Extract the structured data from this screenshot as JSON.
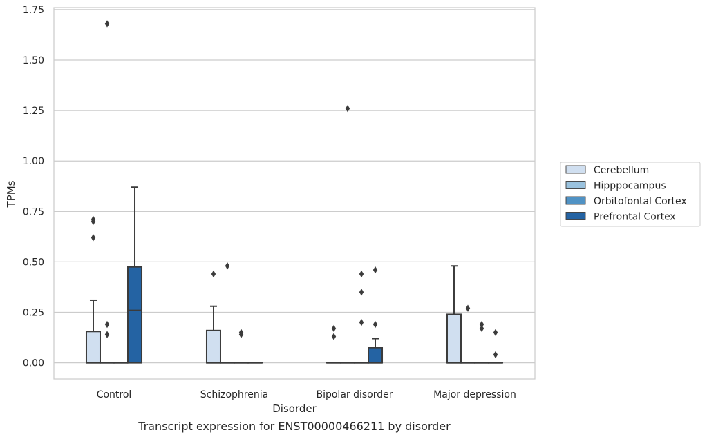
{
  "chart_data": {
    "type": "box",
    "caption": "Transcript expression for ENST00000466211 by disorder",
    "xlabel": "Disorder",
    "ylabel": "TPMs",
    "categories": [
      "Control",
      "Schizophrenia",
      "Bipolar disorder",
      "Major depression"
    ],
    "ylim": [
      -0.08,
      1.76
    ],
    "yticks": [
      0.0,
      0.25,
      0.5,
      0.75,
      1.0,
      1.25,
      1.5,
      1.75
    ],
    "ytick_labels": [
      "0.00",
      "0.25",
      "0.50",
      "0.75",
      "1.00",
      "1.25",
      "1.50",
      "1.75"
    ],
    "grid": "horizontal",
    "legend_position": "right",
    "series": [
      {
        "name": "Cerebellum",
        "color": "#d0dff0",
        "boxes": [
          {
            "q1": 0.0,
            "median": 0.0,
            "q3": 0.155,
            "whisker_low": 0.0,
            "whisker_high": 0.31,
            "outliers": [
              0.71,
              0.7,
              0.62
            ]
          },
          {
            "q1": 0.0,
            "median": 0.0,
            "q3": 0.16,
            "whisker_low": 0.0,
            "whisker_high": 0.28,
            "outliers": [
              0.44
            ]
          },
          {
            "q1": 0.0,
            "median": 0.0,
            "q3": 0.0,
            "whisker_low": 0.0,
            "whisker_high": 0.0,
            "outliers": [
              0.17,
              0.13
            ]
          },
          {
            "q1": 0.0,
            "median": 0.0,
            "q3": 0.24,
            "whisker_low": 0.0,
            "whisker_high": 0.48,
            "outliers": []
          }
        ]
      },
      {
        "name": "Hipppocampus",
        "color": "#9ac2de",
        "boxes": [
          {
            "q1": 0.0,
            "median": 0.0,
            "q3": 0.0,
            "whisker_low": 0.0,
            "whisker_high": 0.0,
            "outliers": [
              1.68,
              0.19,
              0.14
            ]
          },
          {
            "q1": 0.0,
            "median": 0.0,
            "q3": 0.0,
            "whisker_low": 0.0,
            "whisker_high": 0.0,
            "outliers": [
              0.48
            ]
          },
          {
            "q1": 0.0,
            "median": 0.0,
            "q3": 0.0,
            "whisker_low": 0.0,
            "whisker_high": 0.0,
            "outliers": [
              1.26
            ]
          },
          {
            "q1": 0.0,
            "median": 0.0,
            "q3": 0.0,
            "whisker_low": 0.0,
            "whisker_high": 0.0,
            "outliers": [
              0.27
            ]
          }
        ]
      },
      {
        "name": "Orbitofontal Cortex",
        "color": "#5092c4",
        "boxes": [
          {
            "q1": 0.0,
            "median": 0.0,
            "q3": 0.0,
            "whisker_low": 0.0,
            "whisker_high": 0.0,
            "outliers": []
          },
          {
            "q1": 0.0,
            "median": 0.0,
            "q3": 0.0,
            "whisker_low": 0.0,
            "whisker_high": 0.0,
            "outliers": [
              0.15,
              0.14
            ]
          },
          {
            "q1": 0.0,
            "median": 0.0,
            "q3": 0.0,
            "whisker_low": 0.0,
            "whisker_high": 0.0,
            "outliers": [
              0.44,
              0.35,
              0.2
            ]
          },
          {
            "q1": 0.0,
            "median": 0.0,
            "q3": 0.0,
            "whisker_low": 0.0,
            "whisker_high": 0.0,
            "outliers": [
              0.19,
              0.17
            ]
          }
        ]
      },
      {
        "name": "Prefrontal Cortex",
        "color": "#2463a3",
        "boxes": [
          {
            "q1": 0.0,
            "median": 0.26,
            "q3": 0.475,
            "whisker_low": 0.0,
            "whisker_high": 0.87,
            "outliers": []
          },
          {
            "q1": 0.0,
            "median": 0.0,
            "q3": 0.0,
            "whisker_low": 0.0,
            "whisker_high": 0.0,
            "outliers": []
          },
          {
            "q1": 0.0,
            "median": 0.0,
            "q3": 0.075,
            "whisker_low": 0.0,
            "whisker_high": 0.12,
            "outliers": [
              0.46,
              0.19
            ]
          },
          {
            "q1": 0.0,
            "median": 0.0,
            "q3": 0.0,
            "whisker_low": 0.0,
            "whisker_high": 0.0,
            "outliers": [
              0.15,
              0.04
            ]
          }
        ]
      }
    ]
  }
}
